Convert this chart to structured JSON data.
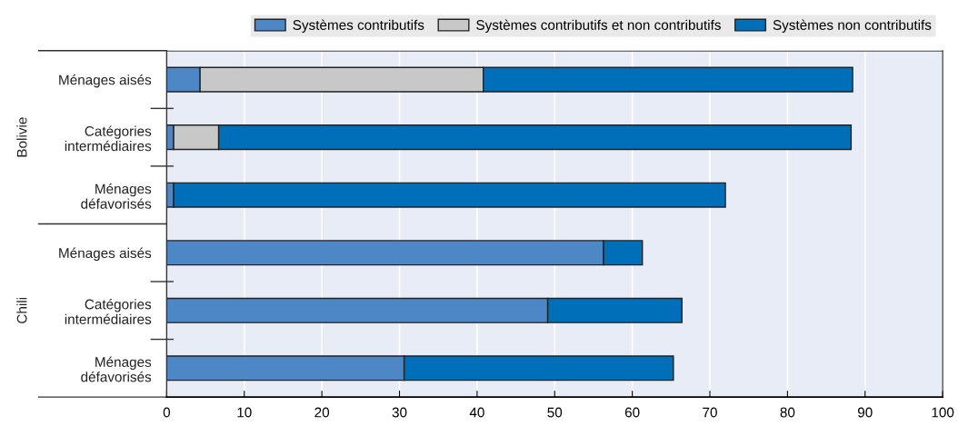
{
  "chart_data": {
    "type": "bar",
    "orientation": "horizontal",
    "stacked": true,
    "categories": [
      "Ménages aisés",
      "Catégories\nintermédiaires",
      "Ménages\ndéfavorisés",
      "Ménages aisés",
      "Catégories\nintermédiaires",
      "Ménages\ndéfavorisés"
    ],
    "series": [
      {
        "name": "Systèmes contributifs",
        "color": "#4e87c6",
        "values": [
          4.3,
          0.9,
          0.9,
          56.3,
          49.1,
          30.6
        ]
      },
      {
        "name": "Systèmes contributifs et non contributifs",
        "color": "#c8c8c8",
        "values": [
          36.5,
          5.8,
          0,
          0,
          0,
          0
        ]
      },
      {
        "name": "Systèmes non contributifs",
        "color": "#006fba",
        "values": [
          47.6,
          81.5,
          71.1,
          5.0,
          17.3,
          34.7
        ]
      }
    ],
    "annotations": [
      "Bolivie",
      "Chili"
    ],
    "xlim": [
      0,
      100
    ],
    "xticks": [
      0,
      10,
      20,
      30,
      40,
      50,
      60,
      70,
      80,
      90,
      100
    ],
    "grid": "x",
    "legend": "top"
  }
}
